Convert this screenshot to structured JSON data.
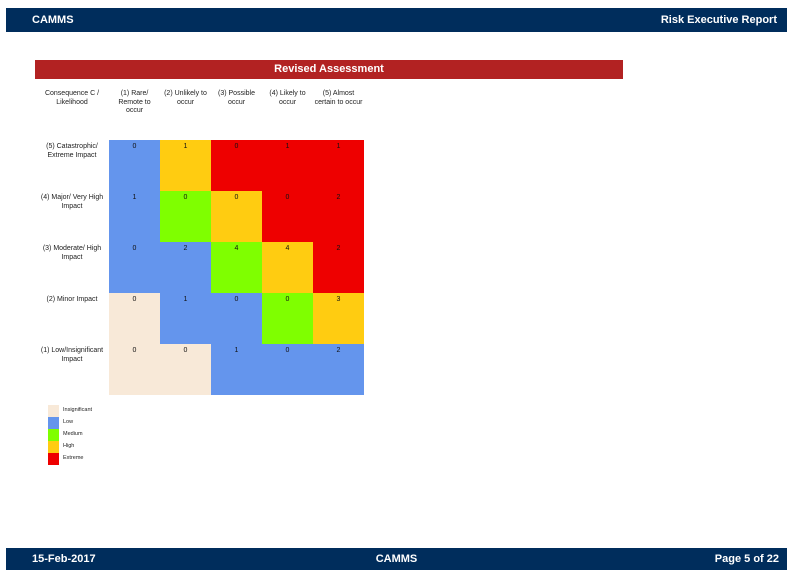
{
  "header": {
    "left": "CAMMS",
    "right": "Risk Executive Report"
  },
  "footer": {
    "date": "15-Feb-2017",
    "center": "CAMMS",
    "page": "Page 5 of 22"
  },
  "section_title": "Revised Assessment",
  "matrix": {
    "corner": "Consequence C / Likelihood",
    "columns": [
      "(1) Rare/ Remote to occur",
      "(2) Unlikely to occur",
      "(3) Possible occur",
      "(4) Likely to occur",
      "(5) Almost certain to occur"
    ],
    "rows": [
      {
        "label": "(5) Catastrophic/ Extreme Impact",
        "values": [
          "0",
          "1",
          "0",
          "1",
          "1"
        ],
        "levels": [
          "low",
          "high",
          "extreme",
          "extreme",
          "extreme"
        ]
      },
      {
        "label": "(4) Major/ Very High Impact",
        "values": [
          "1",
          "0",
          "0",
          "0",
          "2"
        ],
        "levels": [
          "low",
          "medium",
          "high",
          "extreme",
          "extreme"
        ]
      },
      {
        "label": "(3) Moderate/ High Impact",
        "values": [
          "0",
          "2",
          "4",
          "4",
          "2"
        ],
        "levels": [
          "low",
          "low",
          "medium",
          "high",
          "extreme"
        ]
      },
      {
        "label": "(2) Minor Impact",
        "values": [
          "0",
          "1",
          "0",
          "0",
          "3"
        ],
        "levels": [
          "insignificant",
          "low",
          "low",
          "medium",
          "high"
        ]
      },
      {
        "label": "(1) Low/Insignificant Impact",
        "values": [
          "0",
          "0",
          "1",
          "0",
          "2"
        ],
        "levels": [
          "insignificant",
          "insignificant",
          "low",
          "low",
          "low"
        ]
      }
    ]
  },
  "legend": [
    {
      "key": "insignificant",
      "label": "Insignificant",
      "color": "#f8e9d8"
    },
    {
      "key": "low",
      "label": "Low",
      "color": "#6495ed"
    },
    {
      "key": "medium",
      "label": "Medium",
      "color": "#7fff00"
    },
    {
      "key": "high",
      "label": "High",
      "color": "#ffcc11"
    },
    {
      "key": "extreme",
      "label": "Extreme",
      "color": "#ee0000"
    }
  ],
  "colors": {
    "header_bg": "#002d5c",
    "title_bg": "#b22222"
  }
}
